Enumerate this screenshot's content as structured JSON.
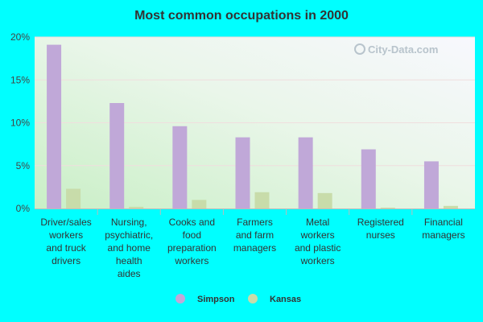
{
  "chart_data": {
    "type": "bar",
    "title": "Most common occupations in 2000",
    "categories": [
      [
        "Driver/sales",
        "workers",
        "and truck",
        "drivers"
      ],
      [
        "Nursing,",
        "psychiatric,",
        "and home",
        "health",
        "aides"
      ],
      [
        "Cooks and",
        "food",
        "preparation",
        "workers"
      ],
      [
        "Farmers",
        "and farm",
        "managers"
      ],
      [
        "Metal",
        "workers",
        "and plastic",
        "workers"
      ],
      [
        "Registered",
        "nurses"
      ],
      [
        "Financial",
        "managers"
      ]
    ],
    "series": [
      {
        "name": "Simpson",
        "color": "#c0a8d8",
        "values": [
          19.1,
          12.3,
          9.6,
          8.3,
          8.3,
          6.9,
          5.5
        ]
      },
      {
        "name": "Kansas",
        "color": "#c8dcaa",
        "values": [
          2.3,
          0.2,
          1.0,
          1.9,
          1.8,
          0.1,
          0.3
        ]
      }
    ],
    "y_ticks": [
      "0%",
      "5%",
      "10%",
      "15%",
      "20%"
    ],
    "ylim": [
      0,
      20
    ],
    "legend_position": "bottom-center",
    "watermark": "City-Data.com"
  }
}
